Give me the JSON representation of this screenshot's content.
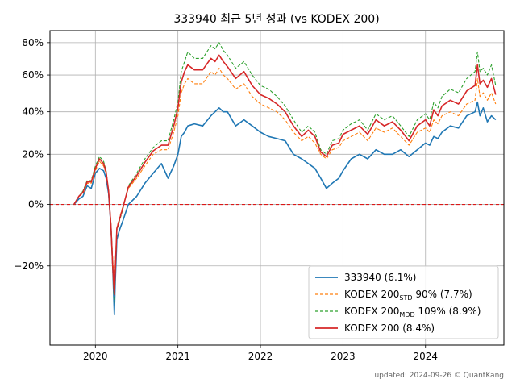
{
  "chart_data": {
    "type": "line",
    "title": "333940 최근 5년 성과 (vs KODEX 200)",
    "xlabel": "",
    "ylabel": "",
    "xlim": [
      2019.45,
      2024.95
    ],
    "ylim": [
      -0.4,
      0.88
    ],
    "y_scale": "log(1+r)",
    "grid": true,
    "legend_position": "lower-right",
    "x_ticks": [
      {
        "value": 2020,
        "label": "2020"
      },
      {
        "value": 2021,
        "label": "2021"
      },
      {
        "value": 2022,
        "label": "2022"
      },
      {
        "value": 2023,
        "label": "2023"
      },
      {
        "value": 2024,
        "label": "2024"
      }
    ],
    "y_ticks": [
      {
        "value": -0.2,
        "label": "−20%"
      },
      {
        "value": 0.0,
        "label": "0%"
      },
      {
        "value": 0.2,
        "label": "20%"
      },
      {
        "value": 0.4,
        "label": "40%"
      },
      {
        "value": 0.6,
        "label": "60%"
      },
      {
        "value": 0.8,
        "label": "80%"
      }
    ],
    "reference_line": {
      "value": 0.0,
      "color": "#e00000",
      "style": "dashed"
    },
    "series": [
      {
        "name": "333940 (6.1%)",
        "legend_main": "333940 (6.1%)",
        "legend_sub": "",
        "legend_tail": "",
        "color": "#1f77b4",
        "style": "solid",
        "x": [
          2019.74,
          2019.8,
          2019.85,
          2019.9,
          2019.95,
          2020.0,
          2020.05,
          2020.1,
          2020.13,
          2020.16,
          2020.19,
          2020.21,
          2020.23,
          2020.24,
          2020.26,
          2020.29,
          2020.33,
          2020.4,
          2020.5,
          2020.6,
          2020.7,
          2020.8,
          2020.88,
          2020.95,
          2021.0,
          2021.04,
          2021.08,
          2021.12,
          2021.2,
          2021.3,
          2021.4,
          2021.45,
          2021.5,
          2021.55,
          2021.6,
          2021.7,
          2021.8,
          2021.9,
          2022.0,
          2022.1,
          2022.2,
          2022.3,
          2022.4,
          2022.5,
          2022.58,
          2022.66,
          2022.73,
          2022.8,
          2022.87,
          2022.95,
          2023.0,
          2023.1,
          2023.2,
          2023.3,
          2023.4,
          2023.5,
          2023.6,
          2023.7,
          2023.8,
          2023.9,
          2024.0,
          2024.05,
          2024.1,
          2024.15,
          2024.2,
          2024.3,
          2024.4,
          2024.5,
          2024.6,
          2024.63,
          2024.66,
          2024.7,
          2024.75,
          2024.8,
          2024.85
        ],
        "values": [
          0.0,
          0.02,
          0.03,
          0.07,
          0.06,
          0.12,
          0.14,
          0.13,
          0.1,
          0.04,
          -0.08,
          -0.2,
          -0.33,
          -0.25,
          -0.12,
          -0.09,
          -0.06,
          0.0,
          0.03,
          0.08,
          0.12,
          0.16,
          0.1,
          0.15,
          0.2,
          0.28,
          0.3,
          0.33,
          0.34,
          0.33,
          0.38,
          0.4,
          0.42,
          0.4,
          0.4,
          0.33,
          0.36,
          0.33,
          0.3,
          0.28,
          0.27,
          0.26,
          0.2,
          0.18,
          0.16,
          0.14,
          0.1,
          0.06,
          0.08,
          0.1,
          0.13,
          0.18,
          0.2,
          0.18,
          0.22,
          0.2,
          0.2,
          0.22,
          0.19,
          0.22,
          0.25,
          0.24,
          0.28,
          0.27,
          0.3,
          0.33,
          0.32,
          0.38,
          0.4,
          0.45,
          0.38,
          0.42,
          0.35,
          0.38,
          0.36
        ]
      },
      {
        "name": "KODEX 200STD 90% (7.7%)",
        "legend_main": "KODEX 200",
        "legend_sub": "STD",
        "legend_tail": " 90% (7.7%)",
        "color": "#ff7f0e",
        "style": "dashed",
        "x": [
          2019.74,
          2019.8,
          2019.85,
          2019.9,
          2019.95,
          2020.0,
          2020.05,
          2020.1,
          2020.13,
          2020.16,
          2020.19,
          2020.21,
          2020.23,
          2020.24,
          2020.26,
          2020.29,
          2020.33,
          2020.4,
          2020.5,
          2020.6,
          2020.7,
          2020.8,
          2020.88,
          2020.95,
          2021.0,
          2021.04,
          2021.08,
          2021.12,
          2021.2,
          2021.3,
          2021.4,
          2021.45,
          2021.5,
          2021.55,
          2021.6,
          2021.7,
          2021.8,
          2021.9,
          2022.0,
          2022.1,
          2022.2,
          2022.3,
          2022.4,
          2022.5,
          2022.58,
          2022.66,
          2022.73,
          2022.8,
          2022.87,
          2022.95,
          2023.0,
          2023.1,
          2023.2,
          2023.3,
          2023.4,
          2023.5,
          2023.6,
          2023.7,
          2023.8,
          2023.9,
          2024.0,
          2024.05,
          2024.1,
          2024.15,
          2024.2,
          2024.3,
          2024.4,
          2024.5,
          2024.6,
          2024.63,
          2024.66,
          2024.7,
          2024.75,
          2024.8,
          2024.85
        ],
        "values": [
          0.0,
          0.03,
          0.04,
          0.08,
          0.08,
          0.13,
          0.17,
          0.15,
          0.12,
          0.05,
          -0.07,
          -0.18,
          -0.25,
          -0.2,
          -0.08,
          -0.05,
          -0.01,
          0.06,
          0.1,
          0.15,
          0.2,
          0.22,
          0.22,
          0.3,
          0.38,
          0.5,
          0.55,
          0.58,
          0.55,
          0.55,
          0.62,
          0.6,
          0.64,
          0.6,
          0.58,
          0.52,
          0.55,
          0.48,
          0.44,
          0.42,
          0.4,
          0.36,
          0.3,
          0.26,
          0.28,
          0.25,
          0.2,
          0.18,
          0.22,
          0.23,
          0.26,
          0.28,
          0.3,
          0.26,
          0.32,
          0.3,
          0.32,
          0.28,
          0.24,
          0.3,
          0.32,
          0.3,
          0.36,
          0.34,
          0.38,
          0.4,
          0.38,
          0.44,
          0.46,
          0.58,
          0.48,
          0.5,
          0.46,
          0.5,
          0.44
        ]
      },
      {
        "name": "KODEX 200MDD 109% (8.9%)",
        "legend_main": "KODEX 200",
        "legend_sub": "MDD",
        "legend_tail": " 109% (8.9%)",
        "color": "#2ca02c",
        "style": "dashed",
        "x": [
          2019.74,
          2019.8,
          2019.85,
          2019.9,
          2019.95,
          2020.0,
          2020.05,
          2020.1,
          2020.13,
          2020.16,
          2020.19,
          2020.21,
          2020.23,
          2020.24,
          2020.26,
          2020.29,
          2020.33,
          2020.4,
          2020.5,
          2020.6,
          2020.7,
          2020.8,
          2020.88,
          2020.95,
          2021.0,
          2021.04,
          2021.08,
          2021.12,
          2021.2,
          2021.3,
          2021.4,
          2021.45,
          2021.5,
          2021.55,
          2021.6,
          2021.7,
          2021.8,
          2021.9,
          2022.0,
          2022.1,
          2022.2,
          2022.3,
          2022.4,
          2022.5,
          2022.58,
          2022.66,
          2022.73,
          2022.8,
          2022.87,
          2022.95,
          2023.0,
          2023.1,
          2023.2,
          2023.3,
          2023.4,
          2023.5,
          2023.6,
          2023.7,
          2023.8,
          2023.9,
          2024.0,
          2024.05,
          2024.1,
          2024.15,
          2024.2,
          2024.3,
          2024.4,
          2024.5,
          2024.6,
          2024.63,
          2024.66,
          2024.7,
          2024.75,
          2024.8,
          2024.85
        ],
        "values": [
          0.0,
          0.03,
          0.05,
          0.09,
          0.09,
          0.15,
          0.19,
          0.17,
          0.13,
          0.05,
          -0.09,
          -0.21,
          -0.3,
          -0.23,
          -0.09,
          -0.06,
          -0.02,
          0.07,
          0.12,
          0.18,
          0.23,
          0.26,
          0.26,
          0.36,
          0.45,
          0.62,
          0.68,
          0.74,
          0.7,
          0.7,
          0.78,
          0.76,
          0.8,
          0.75,
          0.72,
          0.64,
          0.68,
          0.6,
          0.54,
          0.52,
          0.48,
          0.43,
          0.36,
          0.3,
          0.33,
          0.3,
          0.22,
          0.2,
          0.26,
          0.27,
          0.31,
          0.34,
          0.36,
          0.31,
          0.39,
          0.36,
          0.38,
          0.33,
          0.28,
          0.36,
          0.39,
          0.36,
          0.45,
          0.42,
          0.48,
          0.52,
          0.5,
          0.58,
          0.62,
          0.74,
          0.62,
          0.64,
          0.6,
          0.66,
          0.54
        ]
      },
      {
        "name": "KODEX 200 (8.4%)",
        "legend_main": "KODEX 200 (8.4%)",
        "legend_sub": "",
        "legend_tail": "",
        "color": "#d62728",
        "style": "solid",
        "x": [
          2019.74,
          2019.8,
          2019.85,
          2019.9,
          2019.95,
          2020.0,
          2020.05,
          2020.1,
          2020.13,
          2020.16,
          2020.19,
          2020.21,
          2020.23,
          2020.24,
          2020.26,
          2020.29,
          2020.33,
          2020.4,
          2020.5,
          2020.6,
          2020.7,
          2020.8,
          2020.88,
          2020.95,
          2021.0,
          2021.04,
          2021.08,
          2021.12,
          2021.2,
          2021.3,
          2021.4,
          2021.45,
          2021.5,
          2021.55,
          2021.6,
          2021.7,
          2021.8,
          2021.9,
          2022.0,
          2022.1,
          2022.2,
          2022.3,
          2022.4,
          2022.5,
          2022.58,
          2022.66,
          2022.73,
          2022.8,
          2022.87,
          2022.95,
          2023.0,
          2023.1,
          2023.2,
          2023.3,
          2023.4,
          2023.5,
          2023.6,
          2023.7,
          2023.8,
          2023.9,
          2024.0,
          2024.05,
          2024.1,
          2024.15,
          2024.2,
          2024.3,
          2024.4,
          2024.5,
          2024.6,
          2024.63,
          2024.66,
          2024.7,
          2024.75,
          2024.8,
          2024.85
        ],
        "values": [
          0.0,
          0.03,
          0.045,
          0.085,
          0.085,
          0.14,
          0.18,
          0.16,
          0.125,
          0.05,
          -0.08,
          -0.2,
          -0.28,
          -0.22,
          -0.085,
          -0.055,
          -0.015,
          0.065,
          0.11,
          0.165,
          0.215,
          0.24,
          0.24,
          0.33,
          0.42,
          0.56,
          0.62,
          0.66,
          0.63,
          0.63,
          0.7,
          0.68,
          0.72,
          0.68,
          0.65,
          0.58,
          0.62,
          0.54,
          0.49,
          0.47,
          0.44,
          0.4,
          0.33,
          0.28,
          0.31,
          0.28,
          0.21,
          0.19,
          0.24,
          0.25,
          0.29,
          0.31,
          0.33,
          0.29,
          0.36,
          0.33,
          0.35,
          0.31,
          0.26,
          0.33,
          0.36,
          0.33,
          0.41,
          0.38,
          0.43,
          0.46,
          0.44,
          0.51,
          0.54,
          0.66,
          0.55,
          0.57,
          0.53,
          0.58,
          0.49
        ]
      }
    ],
    "footer": "updated: 2024-09-26 © QuantKang"
  }
}
